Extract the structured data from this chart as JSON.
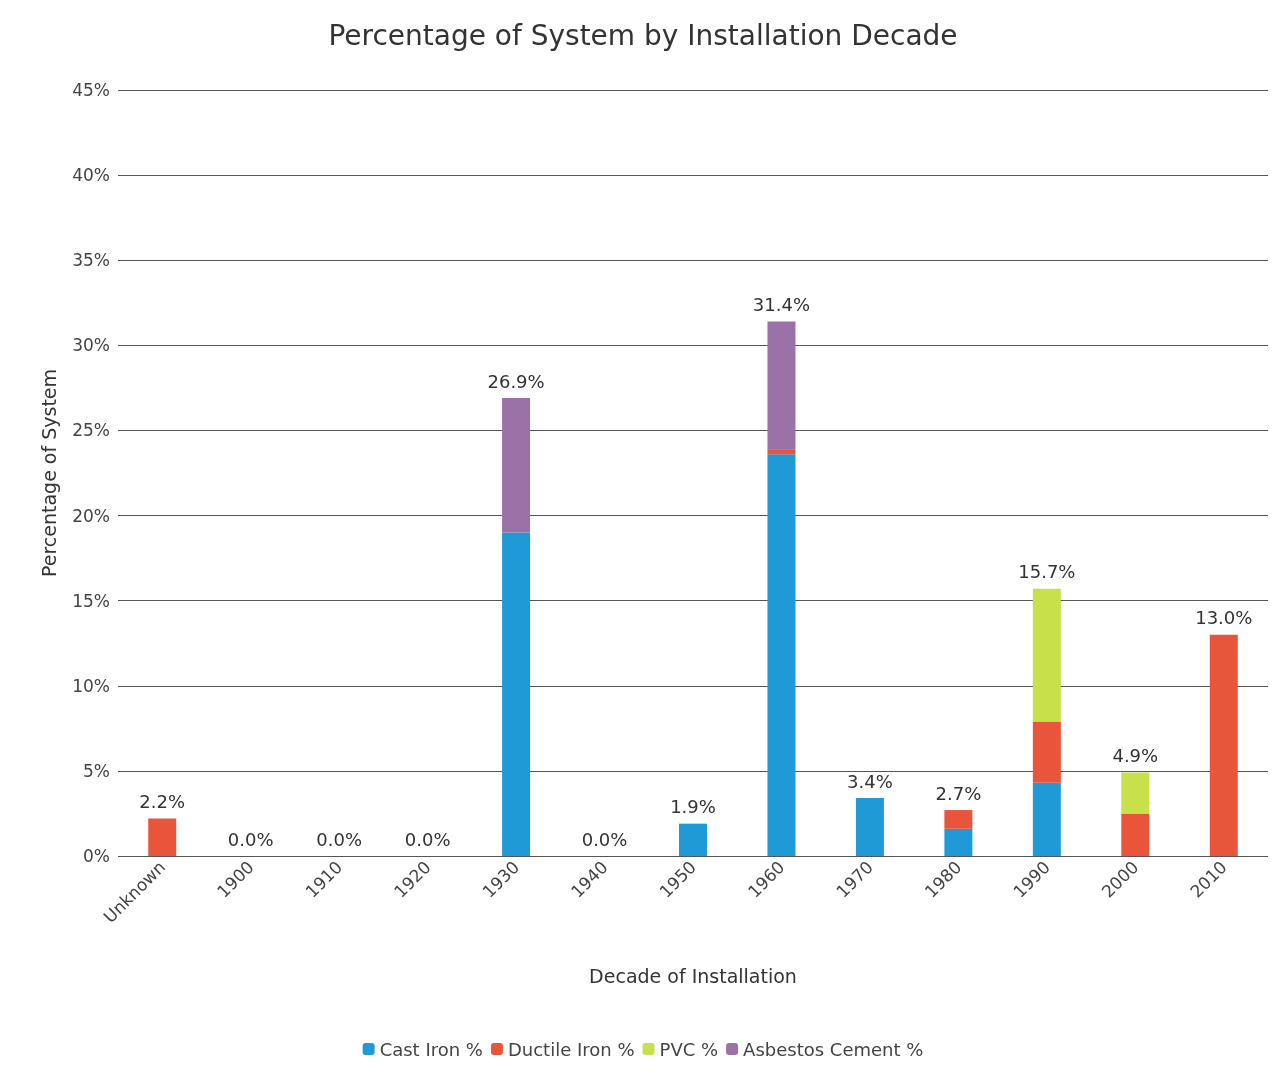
{
  "chart_data": {
    "type": "bar",
    "stacked": true,
    "title": "Percentage of System by Installation Decade",
    "xlabel": "Decade of Installation",
    "ylabel": "Percentage of System",
    "categories": [
      "Unknown",
      "1900",
      "1910",
      "1920",
      "1930",
      "1940",
      "1950",
      "1960",
      "1970",
      "1980",
      "1990",
      "2000",
      "2010"
    ],
    "series": [
      {
        "name": "Cast Iron %",
        "color": "#1f9ad6",
        "values": [
          0,
          0,
          0,
          0,
          19.0,
          0,
          1.9,
          23.6,
          3.4,
          1.6,
          4.3,
          0,
          0
        ]
      },
      {
        "name": "Ductile Iron %",
        "color": "#e8553a",
        "values": [
          2.2,
          0,
          0,
          0,
          0,
          0,
          0,
          0.3,
          0,
          1.1,
          3.6,
          2.5,
          13.0
        ]
      },
      {
        "name": "PVC %",
        "color": "#c8e04a",
        "values": [
          0,
          0,
          0,
          0,
          0,
          0,
          0,
          0,
          0,
          0,
          7.8,
          2.4,
          0
        ]
      },
      {
        "name": "Asbestos Cement %",
        "color": "#9b72a8",
        "values": [
          0,
          0,
          0,
          0,
          7.9,
          0,
          0,
          7.5,
          0,
          0,
          0,
          0,
          0
        ]
      }
    ],
    "totals": [
      "2.2%",
      "0.0%",
      "0.0%",
      "0.0%",
      "26.9%",
      "0.0%",
      "1.9%",
      "31.4%",
      "3.4%",
      "2.7%",
      "15.7%",
      "4.9%",
      "13.0%"
    ],
    "ylim": [
      0,
      45
    ],
    "yticks": [
      {
        "value": 0,
        "label": "0%"
      },
      {
        "value": 5,
        "label": "5%"
      },
      {
        "value": 10,
        "label": "10%"
      },
      {
        "value": 15,
        "label": "15%"
      },
      {
        "value": 20,
        "label": "20%"
      },
      {
        "value": 25,
        "label": "25%"
      },
      {
        "value": 30,
        "label": "30%"
      },
      {
        "value": 35,
        "label": "35%"
      },
      {
        "value": 40,
        "label": "40%"
      },
      {
        "value": 45,
        "label": "45%"
      }
    ],
    "grid": "y",
    "legend": "bottom"
  }
}
